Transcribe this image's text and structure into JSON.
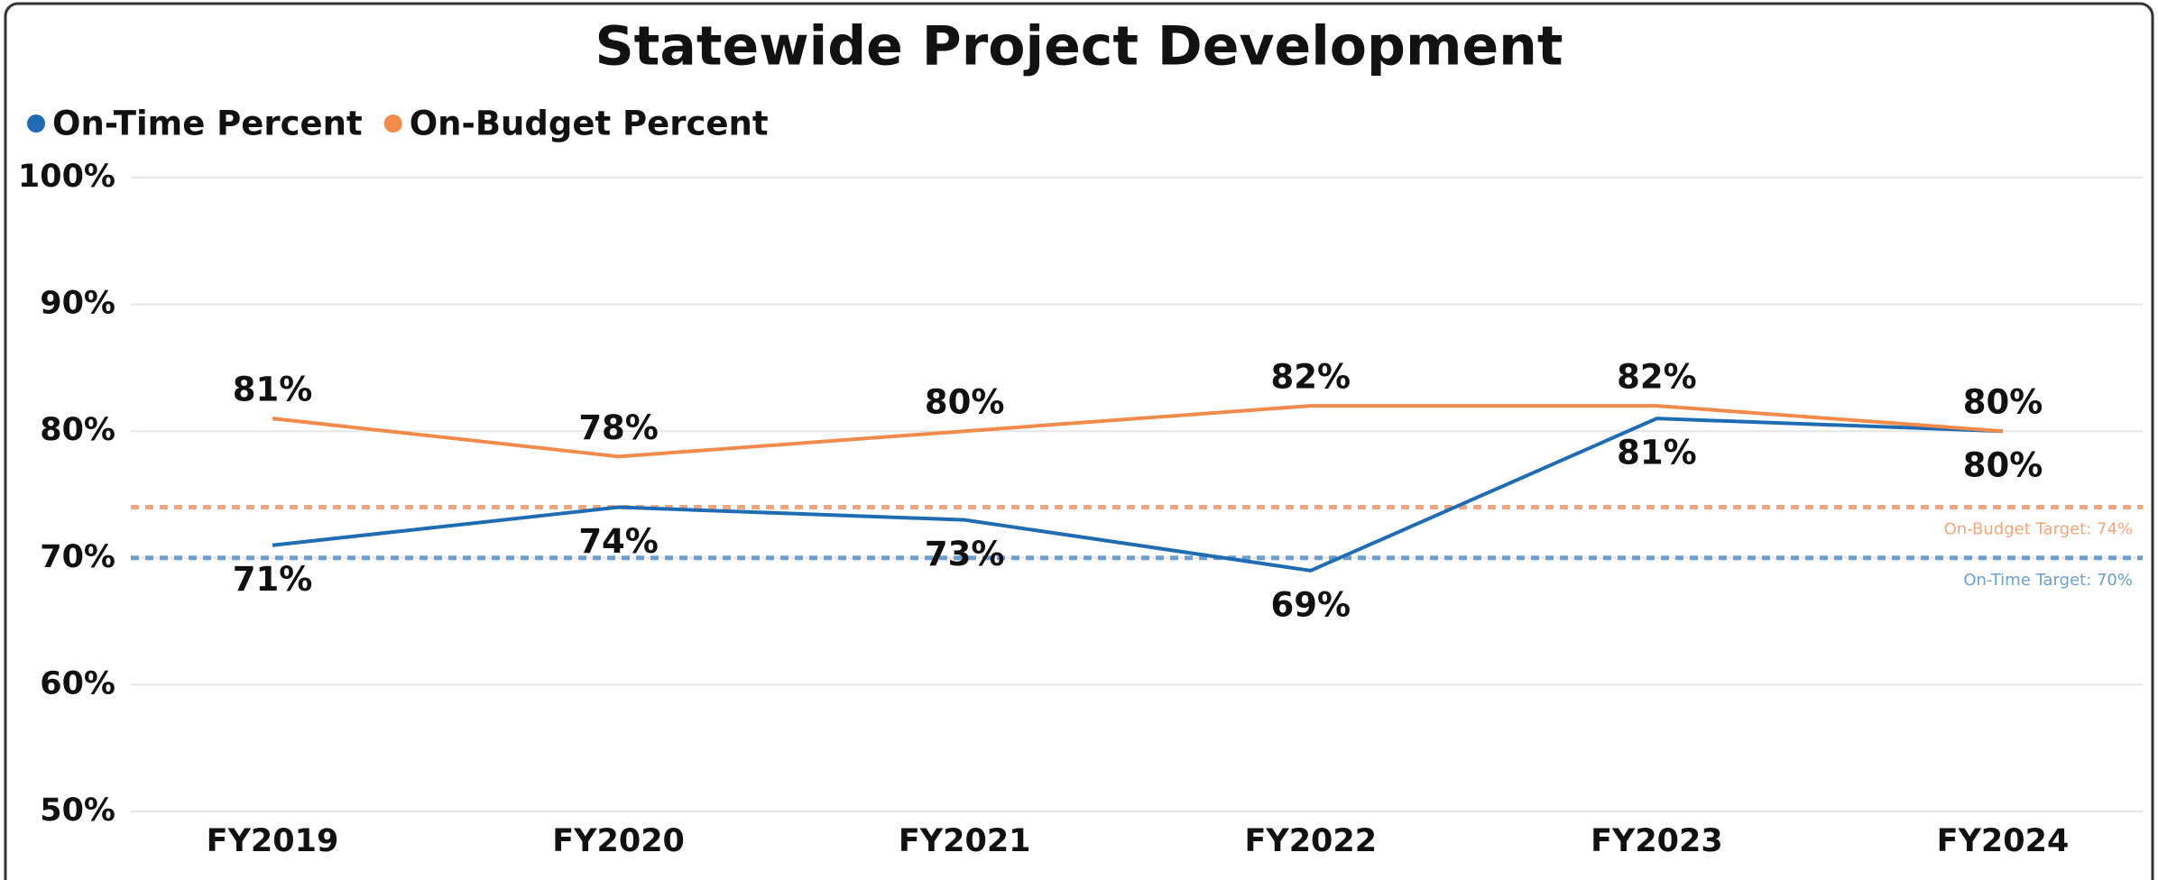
{
  "chart_data": {
    "type": "line",
    "title": "Statewide Project Development",
    "categories": [
      "FY2019",
      "FY2020",
      "FY2021",
      "FY2022",
      "FY2023",
      "FY2024"
    ],
    "series": [
      {
        "name": "On-Time Percent",
        "color": "#1f6cb4",
        "values": [
          71,
          74,
          73,
          69,
          81,
          80
        ],
        "value_labels": [
          "71%",
          "74%",
          "73%",
          "69%",
          "81%",
          "80%"
        ]
      },
      {
        "name": "On-Budget Percent",
        "color": "#f28a4b",
        "values": [
          81,
          78,
          80,
          82,
          82,
          80
        ],
        "value_labels": [
          "81%",
          "78%",
          "80%",
          "82%",
          "82%",
          "80%"
        ]
      }
    ],
    "ylim": [
      50,
      100
    ],
    "yticks": [
      {
        "value": 50,
        "label": "50%"
      },
      {
        "value": 60,
        "label": "60%"
      },
      {
        "value": 70,
        "label": "70%"
      },
      {
        "value": 80,
        "label": "80%"
      },
      {
        "value": 90,
        "label": "90%"
      },
      {
        "value": 100,
        "label": "100%"
      }
    ],
    "grid": true,
    "legend": "top-left",
    "reference_lines": [
      {
        "label": "On-Budget Target: 74%",
        "value": 74,
        "color": "#f5a57a"
      },
      {
        "label": "On-Time Target: 70%",
        "value": 70,
        "color": "#6a9fd0"
      }
    ]
  }
}
